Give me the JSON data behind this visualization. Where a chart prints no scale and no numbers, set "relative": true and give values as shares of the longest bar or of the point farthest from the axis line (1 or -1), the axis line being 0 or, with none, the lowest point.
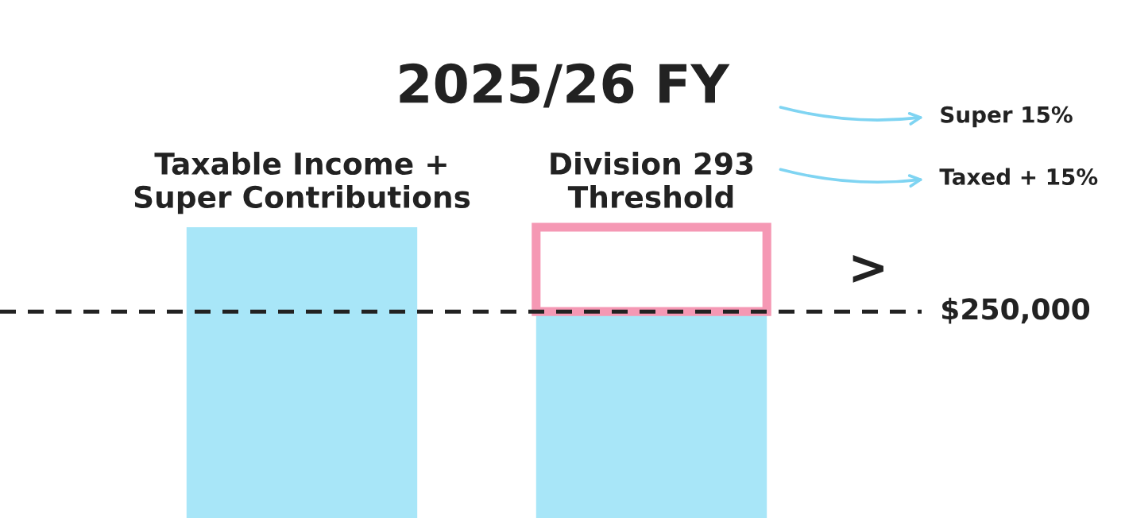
{
  "chart_data": {
    "type": "bar",
    "title": "2025/26 FY",
    "relative": true,
    "stacked": true,
    "categories": [
      "Taxable Income +\nSuper Contributions",
      "Division 293\nThreshold"
    ],
    "series": [
      {
        "color": "#a8e6f8",
        "values": [
          1,
          0.71
        ]
      },
      {
        "color": "#f598b4",
        "values": [
          null,
          0.29
        ]
      }
    ],
    "ref_lines": [
      {
        "axis": "y",
        "value": 0.71,
        "line_style": "dashed",
        "color": "#222222"
      }
    ],
    "annotations": [
      ">",
      "Super 15%",
      "Taxed + 15%",
      "$250,000"
    ],
    "grid": false,
    "legend": false
  }
}
